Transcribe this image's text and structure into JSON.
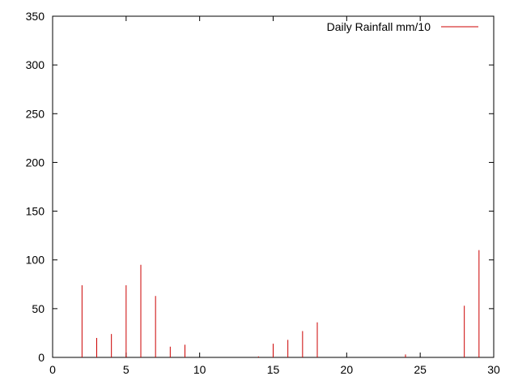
{
  "chart_data": {
    "type": "bar",
    "style": "impulses",
    "title": "",
    "xlabel": "",
    "ylabel": "",
    "xlim": [
      0,
      30
    ],
    "ylim": [
      0,
      350
    ],
    "x_ticks": [
      0,
      5,
      10,
      15,
      20,
      25,
      30
    ],
    "y_ticks": [
      0,
      50,
      100,
      150,
      200,
      250,
      300,
      350
    ],
    "grid": false,
    "legend_position": "top-right",
    "series": [
      {
        "name": "Daily Rainfall mm/10",
        "color": "#cc0000",
        "points": [
          {
            "x": 2,
            "y": 74
          },
          {
            "x": 3,
            "y": 20
          },
          {
            "x": 4,
            "y": 24
          },
          {
            "x": 5,
            "y": 74
          },
          {
            "x": 6,
            "y": 95
          },
          {
            "x": 7,
            "y": 63
          },
          {
            "x": 8,
            "y": 11
          },
          {
            "x": 9,
            "y": 13
          },
          {
            "x": 14,
            "y": 1
          },
          {
            "x": 15,
            "y": 14
          },
          {
            "x": 16,
            "y": 18
          },
          {
            "x": 17,
            "y": 27
          },
          {
            "x": 18,
            "y": 36
          },
          {
            "x": 24,
            "y": 3
          },
          {
            "x": 28,
            "y": 53
          },
          {
            "x": 29,
            "y": 110
          }
        ]
      }
    ]
  }
}
